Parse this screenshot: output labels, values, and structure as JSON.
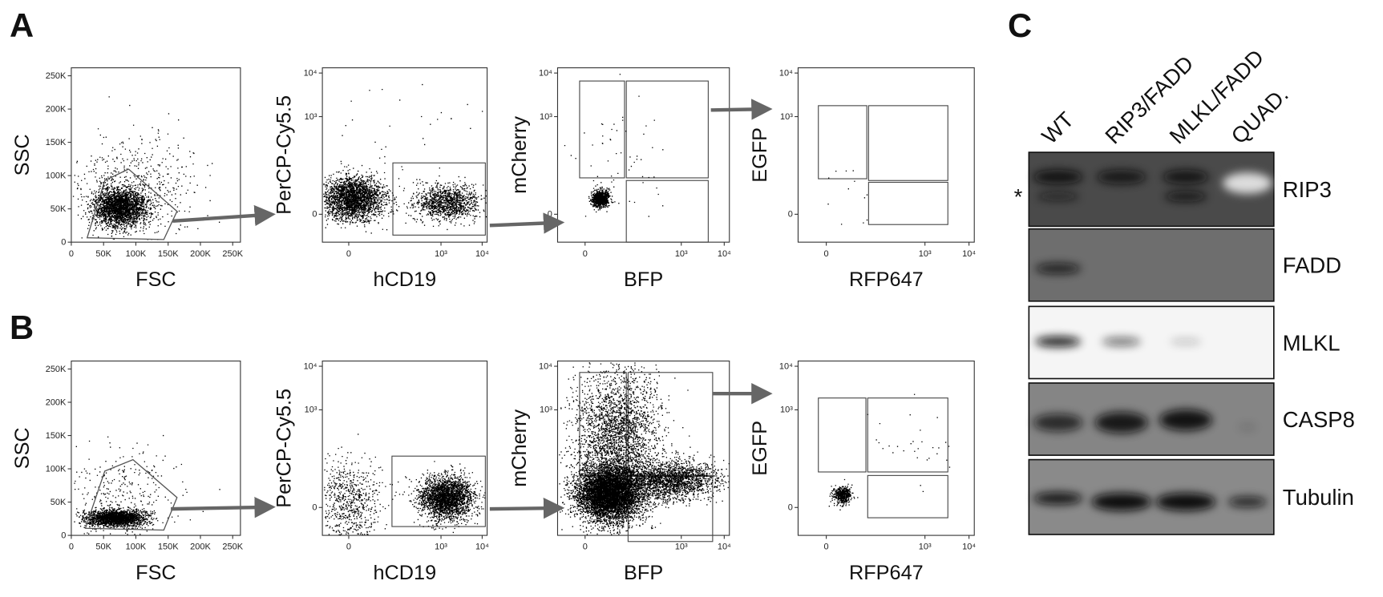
{
  "figure": {
    "panels": {
      "a": "A",
      "b": "B",
      "c": "C"
    },
    "flow_rows": [
      {
        "plots": [
          {
            "y_label": "SSC",
            "x_label": "FSC",
            "y_ticks": [
              "0",
              "50K",
              "100K",
              "150K",
              "200K",
              "250K"
            ],
            "x_ticks": [
              "0",
              "50K",
              "100K",
              "150K",
              "200K",
              "250K"
            ]
          },
          {
            "y_label": "PerCP-Cy5.5",
            "x_label": "hCD19",
            "y_ticks": [
              "0",
              "10³",
              "10⁴"
            ],
            "x_ticks": [
              "0",
              "10³",
              "10⁴"
            ]
          },
          {
            "y_label": "mCherry",
            "x_label": "BFP",
            "y_ticks": [
              "0",
              "10³",
              "10⁴"
            ],
            "x_ticks": [
              "0",
              "10³",
              "10⁴"
            ]
          },
          {
            "y_label": "EGFP",
            "x_label": "RFP647",
            "y_ticks": [
              "0",
              "10³",
              "10⁴"
            ],
            "x_ticks": [
              "0",
              "10³",
              "10⁴"
            ]
          }
        ]
      },
      {
        "plots": [
          {
            "y_label": "SSC",
            "x_label": "FSC",
            "y_ticks": [
              "0",
              "50K",
              "100K",
              "150K",
              "200K",
              "250K"
            ],
            "x_ticks": [
              "0",
              "50K",
              "100K",
              "150K",
              "200K",
              "250K"
            ]
          },
          {
            "y_label": "PerCP-Cy5.5",
            "x_label": "hCD19",
            "y_ticks": [
              "0",
              "10³",
              "10⁴"
            ],
            "x_ticks": [
              "0",
              "10³",
              "10⁴"
            ]
          },
          {
            "y_label": "mCherry",
            "x_label": "BFP",
            "y_ticks": [
              "0",
              "10³",
              "10⁴"
            ],
            "x_ticks": [
              "0",
              "10³",
              "10⁴"
            ]
          },
          {
            "y_label": "EGFP",
            "x_label": "RFP647",
            "y_ticks": [
              "0",
              "10³",
              "10⁴"
            ],
            "x_ticks": [
              "0",
              "10³",
              "10⁴"
            ]
          }
        ]
      }
    ],
    "blot": {
      "lanes": [
        "WT",
        "RIP3/FADD",
        "MLKL/FADD",
        "QUAD."
      ],
      "proteins": [
        "RIP3",
        "FADD",
        "MLKL",
        "CASP8",
        "Tubulin"
      ],
      "marker": "*"
    }
  }
}
